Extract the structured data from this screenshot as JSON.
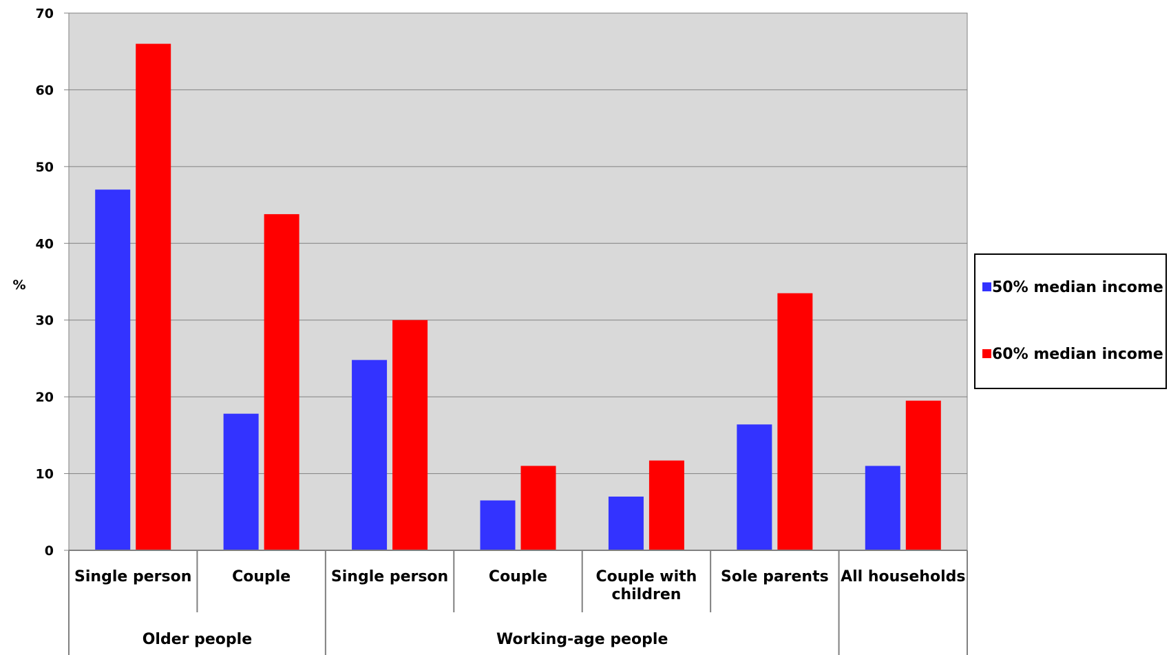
{
  "chart_data": {
    "type": "bar",
    "ylabel": "%",
    "ylim": [
      0,
      70
    ],
    "yticks": [
      0,
      10,
      20,
      30,
      40,
      50,
      60,
      70
    ],
    "grid": true,
    "legend_position": "right",
    "categories": [
      "Single person",
      "Couple",
      "Single person",
      "Couple",
      "Couple with children",
      "Sole parents",
      "All households"
    ],
    "groups": [
      {
        "label": "Older people",
        "categories": [
          0,
          1
        ]
      },
      {
        "label": "Working-age people",
        "categories": [
          2,
          3,
          4,
          5
        ]
      }
    ],
    "series": [
      {
        "name": "50% median income",
        "color": "#3333ff",
        "values": [
          47,
          17.8,
          24.8,
          6.5,
          7,
          16.4,
          11
        ]
      },
      {
        "name": "60% median income",
        "color": "#ff0000",
        "values": [
          66,
          43.8,
          30,
          11,
          11.7,
          33.5,
          19.5
        ]
      }
    ],
    "plot_background": "#d9d9d9"
  }
}
